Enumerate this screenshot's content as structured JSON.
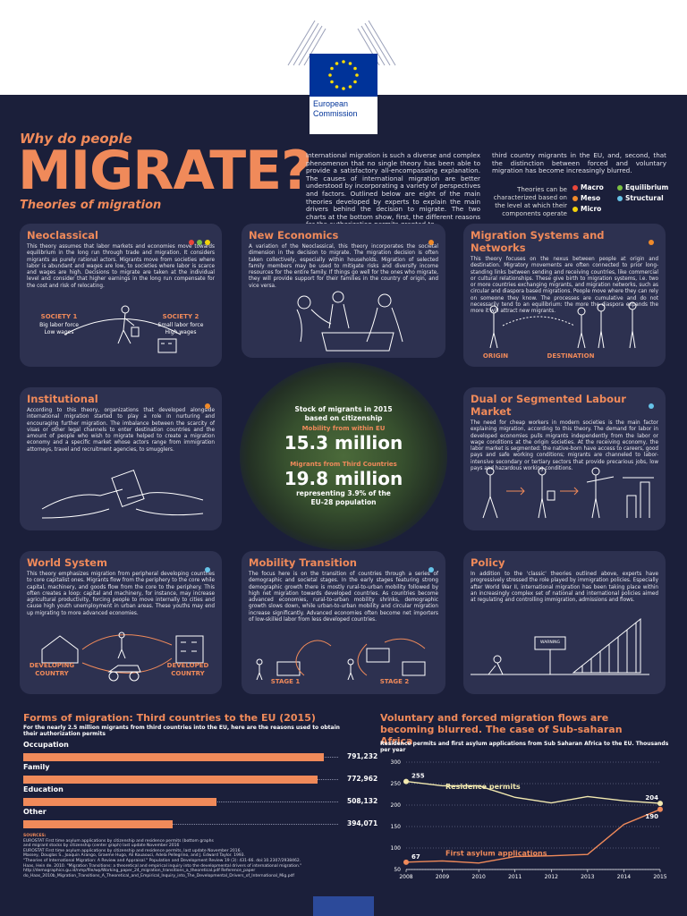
{
  "header": {
    "logo_line1": "European",
    "logo_line2": "Commission"
  },
  "title": {
    "why": "Why do people",
    "main": "MIGRATE?",
    "sub": "Theories of migration"
  },
  "intro": {
    "col1": "International migration is such a diverse and complex phenomenon that no single theory has been able to provide a satisfactory all-encompassing explanation. The causes of international migration are better understood by incorporating a variety of perspectives and factors. Outlined below are eight of the main theories developed by experts to explain the main drivers behind the decision to migrate. The two charts at the bottom show, first, the different reasons for the authorization permits granted to",
    "col2": "third country migrants in the EU, and, second, that the distinction between forced and voluntary migration has become increasingly blurred."
  },
  "legend": {
    "desc": "Theories can be characterized based on the level at which their components operate",
    "items": [
      {
        "label": "Macro",
        "color": "#e8463a"
      },
      {
        "label": "Equilibrium",
        "color": "#7cc242"
      },
      {
        "label": "Meso",
        "color": "#f08a2a"
      },
      {
        "label": "Structural",
        "color": "#66c3e8"
      },
      {
        "label": "Micro",
        "color": "#f2d20c"
      }
    ]
  },
  "panels": {
    "neoclassical": {
      "title": "Neoclassical",
      "text": "This theory assumes that labor markets and economies move towards equilibrium in the long run through trade and migration. It considers migrants as purely rational actors. Migrants move from societies where labor is abundant and wages are low, to societies where labor is scarce and wages are high. Decisions to migrate are taken at the individual level and consider that higher earnings in the long run compensate for the cost and risk of relocating.",
      "s1": "SOCIETY 1",
      "s1a": "Big labor force",
      "s1b": "Low wages",
      "s2": "SOCIETY 2",
      "s2a": "Small labor force",
      "s2b": "High wages"
    },
    "new_economics": {
      "title": "New Economics",
      "text": "A variation of the Neoclassical, this theory incorporates the societal dimension in the decision to migrate. The migration decision is often taken collectively, especially within households. Migration of selected family members may be used to mitigate risks and diversify income resources for the entire family. If things go well for the ones who migrate, they will provide support for their families in the country of origin, and vice versa."
    },
    "migration_systems": {
      "title": "Migration Systems and Networks",
      "text": "This theory focuses on the nexus between people at origin and destination. Migratory movements are often connected to prior long-standing links between sending and receiving countries, like commercial or cultural relationships. These give birth to migration systems, i.e. two or more countries exchanging migrants, and migration networks, such as circular and diaspora based migrations. People move where they can rely on someone they know. The processes are cumulative and do not necessarily tend to an equilibrium: the more the diaspora expands the more it will attract new migrants.",
      "origin": "ORIGIN",
      "destination": "DESTINATION"
    },
    "institutional": {
      "title": "Institutional",
      "text": "According to this theory, organizations that developed alongside international migration started to play a role in nurturing and encouraging further migration. The imbalance between the scarcity of visas or other legal channels to enter destination countries and the amount of people who wish to migrate helped to create a migration economy and a specific market whose actors range from immigration attorneys, travel and recruitment agencies, to smugglers."
    },
    "dual": {
      "title": "Dual or Segmented Labour Market",
      "text": "The need for cheap workers in modern societies is the main factor explaining migration, according to this theory. The demand for labor in developed economies pulls migrants independently from the labor or wage conditions at the origin societies. At the receiving economy, the labor market is segmented: the native-born have access to careers, good pays and safe working conditions; migrants are channeled to labor-intensive secondary or tertiary sectors that provide precarious jobs, low pays and hazardous working conditions."
    },
    "world_system": {
      "title": "World System",
      "text": "This theory emphasizes migration from peripheral developing countries to core capitalist ones. Migrants flow from the periphery to the core while capital, machinery, and goods flow from the core to the periphery. This often creates a loop: capital and machinery, for instance, may increase agricultural productivity, forcing people to move internally to cities and cause high youth unemployment in urban areas. These youths may end up migrating to more advanced economies.",
      "dev1": "DEVELOPING",
      "dev2": "COUNTRY",
      "devd1": "DEVELOPED",
      "devd2": "COUNTRY"
    },
    "mobility": {
      "title": "Mobility Transition",
      "text": "The focus here is on the transition of countries through a series of demographic and societal stages. In the early stages featuring strong demographic growth there is mostly rural-to-urban mobility followed by high net migration towards developed countries. As countries become advanced economies, rural-to-urban mobility shrinks, demographic growth slows down, while urban-to-urban mobility and circular migration increase significantly. Advanced economies often become net importers of low-skilled labor from less developed countries.",
      "stage1": "STAGE 1",
      "stage2": "STAGE 2"
    },
    "policy": {
      "title": "Policy",
      "text": "In addition to the 'classic' theories outlined above, experts have progressively stressed the role played by immigration policies. Especially after World War II, international migration has been taking place within an increasingly complex set of national and international policies aimed at regulating and controlling immigration, admissions and flows.",
      "sign": "WARNING"
    }
  },
  "center_stats": {
    "line1": "Stock of migrants in 2015",
    "line2": "based on citizenship",
    "eu_label": "Mobility from within EU",
    "eu_value": "15.3 million",
    "tc_label": "Migrants from Third Countries",
    "tc_value": "19.8 million",
    "note1": "representing 3.9% of the",
    "note2": "EU-28 population"
  },
  "bar_chart": {
    "title": "Forms of migration: Third countries to the EU (2015)",
    "subtitle1": "For the nearly 2.5 million migrants from third countries into the EU, here are the reasons used to obtain",
    "subtitle2": "their authorization permits",
    "items": [
      {
        "label": "Occupation",
        "value": 791232,
        "display": "791,232"
      },
      {
        "label": "Family",
        "value": 772962,
        "display": "772,962"
      },
      {
        "label": "Education",
        "value": 508132,
        "display": "508,132"
      },
      {
        "label": "Other",
        "value": 394071,
        "display": "394,071"
      }
    ]
  },
  "sources": {
    "label": "SOURCES:",
    "lines": [
      "EUROSTAT First time asylum applications by citizenship and residence permits (bottom graphs",
      "and migrant stocks by citizenship (center graph) last update November 2016",
      "EUROSTAT First time asylum applications by citizenship and residence permits, last update November 2016.",
      "Massey, Douglas S., Joaquin Arango, Graeme Hugo, Ali Kouaouci, Adela Pellegrino, and J. Edward Taylor. 1993.",
      "\"Theories of International Migration: A Review and Appraisal.\" Population and Development Review 19 (3): 431-66. doi:10.2307/2938462.",
      "Haas, Hein de. 2010. \"Migration Transitions: a theoretical and empirical inquiry into the developmental drivers of international migration.\"",
      "http://demographics.gu.id/nmp/file/wp/Working_paper_24_migration_transitions_a_theoretical.pdf Reference_paper",
      "do_Haas_2010b_Migration_Transitions_A_Theoretical_and_Empirical_Inquiry_into_The_Developmental_Drivers_of_International_Mig.pdf"
    ]
  },
  "chart_data": {
    "type": "line",
    "title": "Voluntary and forced migration flows are becoming blurred. The case of Sub-saharan Africa",
    "subtitle": "Residence permits and first asylum applications from Sub Saharan Africa to the EU. Thousands per year",
    "x": [
      2008,
      2009,
      2010,
      2011,
      2012,
      2013,
      2014,
      2015
    ],
    "ylim": [
      50,
      300
    ],
    "yticks": [
      50,
      100,
      150,
      200,
      250,
      300
    ],
    "series": [
      {
        "name": "Residence permits",
        "color": "#f3eab0",
        "values": [
          255,
          245,
          245,
          218,
          205,
          220,
          210,
          204
        ],
        "start_label": "255",
        "end_label": "204"
      },
      {
        "name": "First asylum applications",
        "color": "#f08a5a",
        "values": [
          67,
          70,
          65,
          80,
          82,
          85,
          155,
          190
        ],
        "start_label": "67",
        "end_label": "190"
      }
    ]
  }
}
